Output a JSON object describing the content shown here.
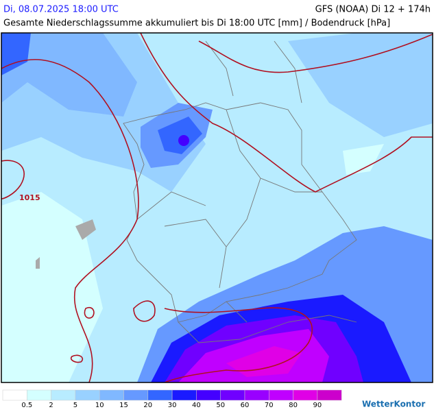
{
  "header": {
    "datetime": "Di, 08.07.2025 18:00 UTC",
    "model": "GFS (NOAA) Di 12 + 174h",
    "subtitle": "Gesamte Niederschlagssumme akkumuliert bis Di 18:00 UTC [mm] / Bodendruck [hPa]"
  },
  "map": {
    "isobar_label": "1015"
  },
  "legend": {
    "colors": [
      "#ffffff",
      "#d4ffff",
      "#b8ecff",
      "#99d1ff",
      "#80b8ff",
      "#6699ff",
      "#3366ff",
      "#1a1aff",
      "#4400ff",
      "#7000ff",
      "#9900ff",
      "#c000ff",
      "#e000e6",
      "#cc00cc"
    ],
    "labels": [
      "0.5",
      "2",
      "5",
      "10",
      "15",
      "20",
      "30",
      "40",
      "50",
      "60",
      "70",
      "80",
      "90"
    ]
  },
  "brand": "WetterKontor"
}
